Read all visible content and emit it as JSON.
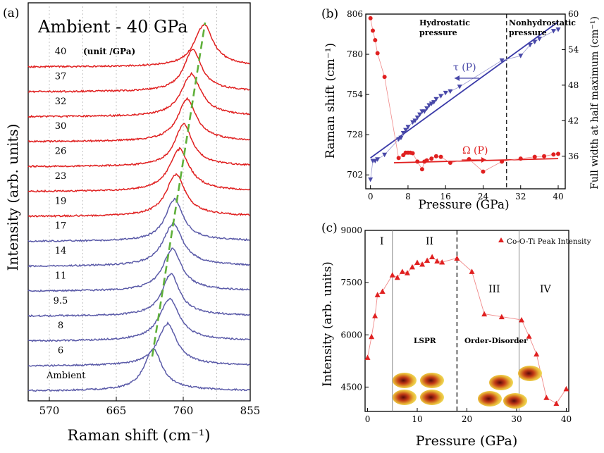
{
  "chart_data": [
    {
      "panel": "(a)",
      "type": "line",
      "title": "Ambient - 40 GPa",
      "unit_note": "(unit /GPa)",
      "xlabel": "Raman shift (cm⁻¹)",
      "ylabel": "Intensity (arb. units)",
      "xlim": [
        540,
        855
      ],
      "xticks": [
        "570",
        "665",
        "760",
        "855"
      ],
      "series": [
        {
          "name": "Ambient",
          "peak": 717,
          "color": "#5a5aa8"
        },
        {
          "name": "6",
          "peak": 737,
          "color": "#5a5aa8"
        },
        {
          "name": "8",
          "peak": 740,
          "color": "#5a5aa8"
        },
        {
          "name": "9.5",
          "peak": 742,
          "color": "#5a5aa8"
        },
        {
          "name": "11",
          "peak": 744,
          "color": "#5a5aa8"
        },
        {
          "name": "14",
          "peak": 745,
          "color": "#5a5aa8"
        },
        {
          "name": "17",
          "peak": 747,
          "color": "#5a5aa8"
        },
        {
          "name": "19",
          "peak": 749,
          "color": "#e02020"
        },
        {
          "name": "23",
          "peak": 754,
          "color": "#e02020"
        },
        {
          "name": "26",
          "peak": 760,
          "color": "#e02020"
        },
        {
          "name": "30",
          "peak": 765,
          "color": "#e02020"
        },
        {
          "name": "32",
          "peak": 771,
          "color": "#e02020"
        },
        {
          "name": "37",
          "peak": 773,
          "color": "#e02020"
        },
        {
          "name": "40",
          "peak": 789,
          "color": "#e02020"
        }
      ],
      "trend_color": "#5fb03a"
    },
    {
      "panel": "(b)",
      "type": "scatter",
      "xlabel": "Pressure (GPa)",
      "ylabel": "Raman shift (cm⁻¹)",
      "y2label": "Full width at half maximum (cm⁻¹)",
      "xlim": [
        -1,
        41.5
      ],
      "ylim": [
        693,
        806
      ],
      "y2lim": [
        30.5,
        60
      ],
      "xticks": [
        0,
        8,
        16,
        24,
        32,
        40
      ],
      "yticks": [
        702,
        728,
        754,
        780,
        806
      ],
      "y2ticks": [
        36,
        42,
        48,
        54,
        60
      ],
      "region_labels": [
        "Hydrostatic",
        "pressure",
        "Nonhydrostatic",
        "pressure"
      ],
      "divider_x": 29,
      "tau": {
        "name": "τ (P)",
        "color": "#4848a8",
        "x": [
          0,
          0.5,
          1,
          1.5,
          3,
          6,
          6.5,
          7,
          7.5,
          8,
          9,
          9.5,
          10,
          10.5,
          11,
          11.5,
          12,
          12.5,
          13,
          13.5,
          14,
          15,
          16,
          17,
          19,
          28,
          32,
          34,
          35,
          36,
          39,
          40
        ],
        "y": [
          699,
          711,
          711,
          712,
          715,
          725,
          726,
          729,
          731,
          733,
          736,
          737,
          739,
          741,
          743,
          743,
          745,
          747,
          748,
          749,
          751,
          753,
          755,
          756,
          759,
          776,
          779,
          786,
          788,
          790,
          795,
          796
        ],
        "fit": [
          [
            0,
            713
          ],
          [
            40,
            801
          ]
        ]
      },
      "omega": {
        "name": "Ω (P)",
        "color": "#e02020",
        "x": [
          0,
          0.5,
          1,
          1.5,
          3,
          6,
          7,
          7.5,
          8,
          8.5,
          9,
          10,
          11,
          11.5,
          12,
          13,
          14,
          15,
          17,
          21,
          24,
          28,
          32,
          35,
          37,
          39,
          40
        ],
        "y": [
          59.3,
          57.2,
          55.6,
          53.4,
          49.4,
          35.7,
          36.2,
          36.6,
          36.6,
          36.6,
          36.5,
          35.1,
          33.8,
          35.1,
          35.3,
          35.6,
          36,
          35.9,
          34.9,
          35.5,
          33.4,
          35.1,
          35.6,
          35.9,
          36,
          36.3,
          36.4
        ],
        "fit": [
          [
            5,
            34.9
          ],
          [
            40,
            35.6
          ]
        ]
      }
    },
    {
      "panel": "(c)",
      "type": "line",
      "legend": "Co-O-Ti Peak Intensity",
      "legend_position": "top-right",
      "xlabel": "Pressure (GPa)",
      "ylabel": "Intensity (arb. units)",
      "xlim": [
        -0.5,
        40.5
      ],
      "ylim": [
        3800,
        9000
      ],
      "xticks": [
        0,
        10,
        20,
        30,
        40
      ],
      "yticks": [
        4500,
        6000,
        7500,
        9000
      ],
      "regions": [
        "I",
        "II",
        "III",
        "IV"
      ],
      "region_notes": [
        "LSPR",
        "Order-Disorder"
      ],
      "dividers": [
        {
          "x": 5,
          "style": "solid"
        },
        {
          "x": 18,
          "style": "dashed"
        },
        {
          "x": 30.5,
          "style": "solid"
        }
      ],
      "color": "#e02020",
      "x": [
        0,
        0.8,
        1.5,
        2,
        3,
        5,
        6,
        7,
        8,
        9,
        10,
        11,
        12,
        13,
        14,
        15,
        18,
        21,
        23.5,
        27,
        31,
        32.5,
        34,
        36,
        38,
        40
      ],
      "y": [
        5350,
        5950,
        6550,
        7150,
        7250,
        7720,
        7650,
        7820,
        7780,
        7950,
        8080,
        8030,
        8140,
        8240,
        8120,
        8090,
        8200,
        7820,
        6600,
        6520,
        6430,
        5960,
        5450,
        4200,
        4030,
        4450
      ]
    }
  ]
}
